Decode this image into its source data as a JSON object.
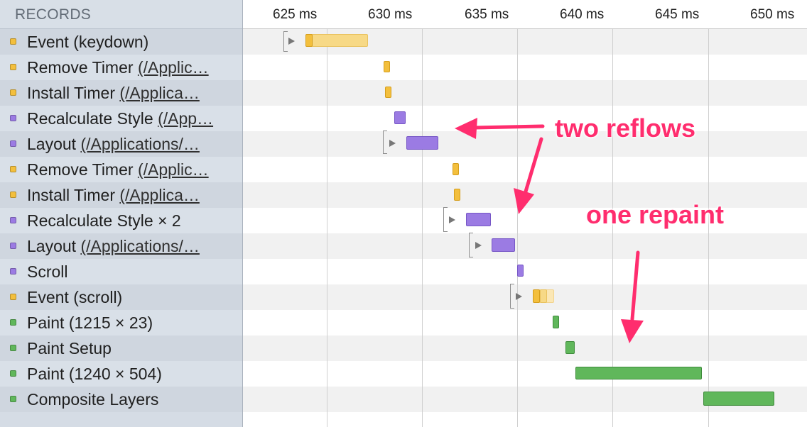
{
  "records_header": "RECORDS",
  "records": [
    {
      "name": "Event",
      "detail": "(keydown)",
      "link": "",
      "color": "#f3bf3d"
    },
    {
      "name": "Remove Timer",
      "detail": "",
      "link": "(/Applic…",
      "color": "#f3bf3d"
    },
    {
      "name": "Install Timer",
      "detail": "",
      "link": "(/Applica…",
      "color": "#f3bf3d"
    },
    {
      "name": "Recalculate Style",
      "detail": "",
      "link": "(/App…",
      "color": "#9b7be3"
    },
    {
      "name": "Layout",
      "detail": "",
      "link": "(/Applications/…",
      "color": "#9b7be3"
    },
    {
      "name": "Remove Timer",
      "detail": "",
      "link": "(/Applic…",
      "color": "#f3bf3d"
    },
    {
      "name": "Install Timer",
      "detail": "",
      "link": "(/Applica…",
      "color": "#f3bf3d"
    },
    {
      "name": "Recalculate Style",
      "detail": "× 2",
      "link": "",
      "color": "#9b7be3"
    },
    {
      "name": "Layout",
      "detail": "",
      "link": "(/Applications/…",
      "color": "#9b7be3"
    },
    {
      "name": "Scroll",
      "detail": "",
      "link": "",
      "color": "#9b7be3"
    },
    {
      "name": "Event",
      "detail": "(scroll)",
      "link": "",
      "color": "#f3bf3d"
    },
    {
      "name": "Paint",
      "detail": "(1215 × 23)",
      "link": "",
      "color": "#60b75b"
    },
    {
      "name": "Paint Setup",
      "detail": "",
      "link": "",
      "color": "#60b75b"
    },
    {
      "name": "Paint",
      "detail": "(1240 × 504)",
      "link": "",
      "color": "#60b75b"
    },
    {
      "name": "Composite Layers",
      "detail": "",
      "link": "",
      "color": "#60b75b"
    }
  ],
  "time_ticks": [
    "625 ms",
    "630 ms",
    "635 ms",
    "640 ms",
    "645 ms",
    "650 ms"
  ],
  "annotations": {
    "reflows": "two reflows",
    "repaint": "one repaint"
  },
  "colors": {
    "loading_yellow": "#f3bf3d",
    "rendering_purple": "#9b7be3",
    "painting_green": "#60b75b",
    "annotation_pink": "#ff2d6e"
  }
}
